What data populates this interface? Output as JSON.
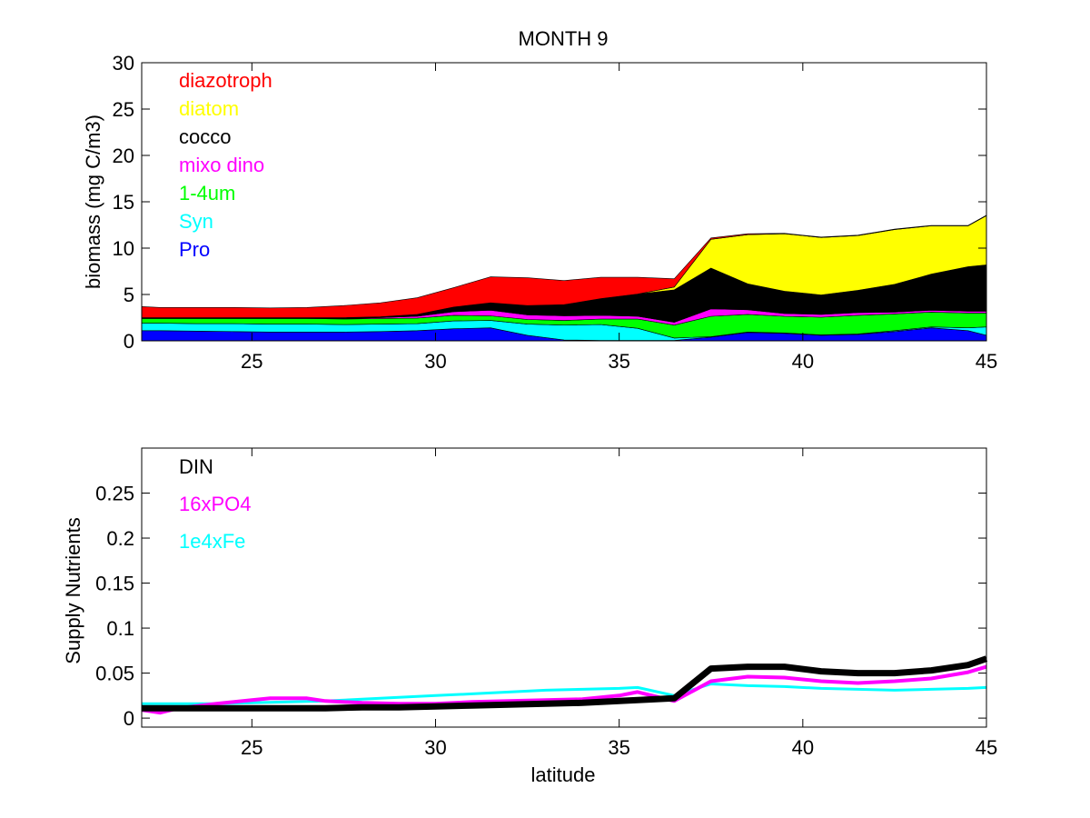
{
  "figure_title": "MONTH 9",
  "chart_data": [
    {
      "type": "area",
      "stacked": true,
      "title": "MONTH 9",
      "xlabel": "",
      "ylabel": "biomass (mg C/m3)",
      "xlim": [
        22,
        45
      ],
      "ylim": [
        0,
        30
      ],
      "xticks": [
        25,
        30,
        35,
        40,
        45
      ],
      "yticks": [
        0,
        5,
        10,
        15,
        20,
        25,
        30
      ],
      "x": [
        22,
        22.5,
        23.5,
        24.5,
        25.5,
        26.5,
        27.5,
        28.5,
        29.5,
        30.5,
        31.5,
        32.5,
        33.5,
        34.5,
        35.5,
        36.5,
        37.5,
        38.5,
        39.5,
        40.5,
        41.5,
        42.5,
        43.5,
        44.5,
        45
      ],
      "series": [
        {
          "name": "Pro",
          "color": "#0000ff",
          "values": [
            1.1,
            1.1,
            1.05,
            1.0,
            0.95,
            0.95,
            0.95,
            1.0,
            1.1,
            1.3,
            1.4,
            0.6,
            0.1,
            0.05,
            0.05,
            0.05,
            0.4,
            0.9,
            0.8,
            0.6,
            0.7,
            1.0,
            1.4,
            1.1,
            0.6
          ]
        },
        {
          "name": "Syn",
          "color": "#00ffff",
          "values": [
            0.8,
            0.8,
            0.8,
            0.85,
            0.85,
            0.85,
            0.8,
            0.8,
            0.75,
            0.85,
            0.8,
            1.2,
            1.6,
            1.7,
            1.3,
            0.25,
            0.05,
            0.05,
            0.05,
            0.05,
            0.05,
            0.1,
            0.1,
            0.3,
            0.9
          ]
        },
        {
          "name": "1-4um",
          "color": "#00ff00",
          "values": [
            0.5,
            0.5,
            0.55,
            0.55,
            0.6,
            0.6,
            0.6,
            0.6,
            0.6,
            0.6,
            0.5,
            0.5,
            0.5,
            0.6,
            1.0,
            1.4,
            2.2,
            1.9,
            1.8,
            1.9,
            2.0,
            1.8,
            1.6,
            1.6,
            1.5
          ]
        },
        {
          "name": "mixo dino",
          "color": "#ff00ff",
          "values": [
            0.05,
            0.05,
            0.05,
            0.05,
            0.05,
            0.05,
            0.05,
            0.1,
            0.2,
            0.4,
            0.6,
            0.5,
            0.5,
            0.4,
            0.3,
            0.3,
            0.8,
            0.5,
            0.3,
            0.3,
            0.3,
            0.2,
            0.2,
            0.2,
            0.2
          ]
        },
        {
          "name": "cocco",
          "color": "#000000",
          "values": [
            0.05,
            0.05,
            0.05,
            0.05,
            0.05,
            0.05,
            0.1,
            0.1,
            0.2,
            0.5,
            0.8,
            1.0,
            1.2,
            1.8,
            2.4,
            3.5,
            4.4,
            2.8,
            2.4,
            2.1,
            2.4,
            3.0,
            3.9,
            4.8,
            5.0
          ]
        },
        {
          "name": "diatom",
          "color": "#ffff00",
          "values": [
            0,
            0,
            0,
            0,
            0,
            0,
            0,
            0,
            0,
            0,
            0,
            0,
            0,
            0,
            0,
            0.3,
            3.1,
            5.3,
            6.2,
            6.2,
            5.9,
            5.9,
            5.2,
            4.4,
            5.3
          ]
        },
        {
          "name": "diazotroph",
          "color": "#ff0000",
          "values": [
            1.2,
            1.1,
            1.1,
            1.1,
            1.05,
            1.1,
            1.3,
            1.5,
            1.8,
            2.1,
            2.8,
            3.0,
            2.6,
            2.3,
            1.8,
            0.9,
            0.15,
            0.1,
            0.05,
            0.05,
            0.05,
            0.05,
            0.05,
            0.05,
            0.05
          ]
        }
      ],
      "legend": [
        "diazotroph",
        "diatom",
        "cocco",
        "mixo dino",
        "1-4um",
        "Syn",
        "Pro"
      ],
      "legend_colors": [
        "#ff0000",
        "#ffff00",
        "#000000",
        "#ff00ff",
        "#00ff00",
        "#00ffff",
        "#0000ff"
      ],
      "legend_position": "top-left"
    },
    {
      "type": "line",
      "title": "",
      "xlabel": "latitude",
      "ylabel": "Supply Nutrients",
      "xlim": [
        22,
        45
      ],
      "ylim": [
        -0.01,
        0.3
      ],
      "xticks": [
        25,
        30,
        35,
        40,
        45
      ],
      "yticks": [
        0,
        0.05,
        0.1,
        0.15,
        0.2,
        0.25
      ],
      "ytick_labels": [
        "0",
        "0.05",
        "0.1",
        "0.15",
        "0.2",
        "0.25"
      ],
      "series": [
        {
          "name": "1e4xFe",
          "color": "#00ffff",
          "width": 3,
          "x": [
            22,
            23,
            24,
            25,
            26,
            27,
            28,
            29,
            30,
            31,
            32,
            33,
            34,
            35,
            35.5,
            36.5,
            37.5,
            38.5,
            39.5,
            40.5,
            41.5,
            42.5,
            43.5,
            44.5,
            45
          ],
          "y": [
            0.016,
            0.016,
            0.016,
            0.017,
            0.018,
            0.019,
            0.021,
            0.023,
            0.025,
            0.027,
            0.029,
            0.031,
            0.032,
            0.033,
            0.034,
            0.025,
            0.038,
            0.036,
            0.035,
            0.033,
            0.032,
            0.031,
            0.032,
            0.033,
            0.034
          ]
        },
        {
          "name": "16xPO4",
          "color": "#ff00ff",
          "width": 4,
          "x": [
            22,
            22.5,
            23,
            24,
            25,
            25.5,
            26.5,
            27,
            28,
            29,
            30,
            31,
            32,
            33,
            34,
            35,
            35.5,
            36.5,
            37.5,
            38.5,
            39.5,
            40.5,
            41.5,
            42.5,
            43.5,
            44.5,
            45
          ],
          "y": [
            0.009,
            0.006,
            0.011,
            0.016,
            0.02,
            0.022,
            0.022,
            0.019,
            0.017,
            0.016,
            0.016,
            0.018,
            0.019,
            0.02,
            0.021,
            0.025,
            0.029,
            0.019,
            0.041,
            0.046,
            0.045,
            0.041,
            0.039,
            0.041,
            0.044,
            0.051,
            0.057
          ]
        },
        {
          "name": "DIN",
          "color": "#000000",
          "width": 7,
          "x": [
            22,
            23,
            24,
            25,
            26,
            27,
            28,
            29,
            30,
            31,
            32,
            33,
            34,
            35,
            36,
            36.5,
            37.5,
            38.5,
            39.5,
            40.5,
            41.5,
            42.5,
            43.5,
            44.5,
            45
          ],
          "y": [
            0.011,
            0.011,
            0.011,
            0.011,
            0.011,
            0.011,
            0.012,
            0.012,
            0.013,
            0.014,
            0.015,
            0.016,
            0.017,
            0.019,
            0.021,
            0.022,
            0.055,
            0.057,
            0.057,
            0.052,
            0.05,
            0.05,
            0.053,
            0.059,
            0.066
          ]
        }
      ],
      "legend": [
        "DIN",
        "16xPO4",
        "1e4xFe"
      ],
      "legend_colors": [
        "#000000",
        "#ff00ff",
        "#00ffff"
      ],
      "legend_position": "top-left"
    }
  ]
}
